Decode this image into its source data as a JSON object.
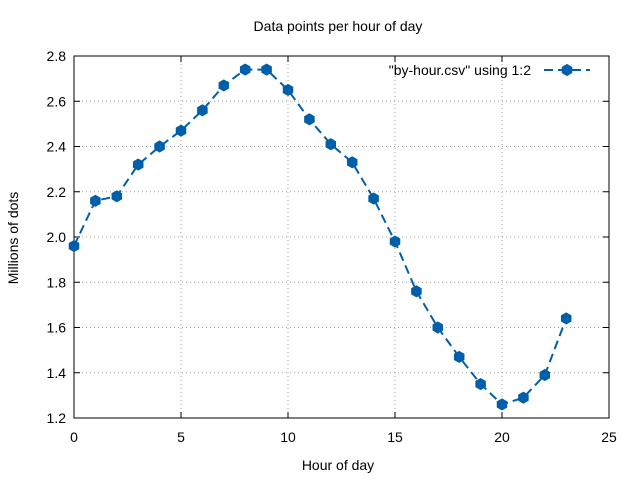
{
  "chart_data": {
    "type": "line",
    "title": "Data points per hour of day",
    "xlabel": "Hour of day",
    "ylabel": "Millions of dots",
    "xlim": [
      0,
      25
    ],
    "ylim": [
      1.2,
      2.8
    ],
    "xticks": [
      0,
      5,
      10,
      15,
      20,
      25
    ],
    "yticks": [
      1.2,
      1.4,
      1.6,
      1.8,
      2.0,
      2.2,
      2.4,
      2.6,
      2.8
    ],
    "xtick_labels": [
      "0",
      "5",
      "10",
      "15",
      "20",
      "25"
    ],
    "ytick_labels": [
      "1.2",
      "1.4",
      "1.6",
      "1.8",
      "2.0",
      "2.2",
      "2.4",
      "2.6",
      "2.8"
    ],
    "grid": true,
    "legend_position": "top-right",
    "series": [
      {
        "name": "\"by-hour.csv\" using 1:2",
        "color": "#005fa8",
        "x": [
          0,
          1,
          2,
          3,
          4,
          5,
          6,
          7,
          8,
          9,
          10,
          11,
          12,
          13,
          14,
          15,
          16,
          17,
          18,
          19,
          20,
          21,
          22,
          23
        ],
        "y": [
          1.96,
          2.16,
          2.18,
          2.32,
          2.4,
          2.47,
          2.56,
          2.67,
          2.74,
          2.74,
          2.65,
          2.52,
          2.41,
          2.33,
          2.17,
          1.98,
          1.76,
          1.6,
          1.47,
          1.35,
          1.26,
          1.29,
          1.39,
          1.64
        ]
      }
    ]
  }
}
